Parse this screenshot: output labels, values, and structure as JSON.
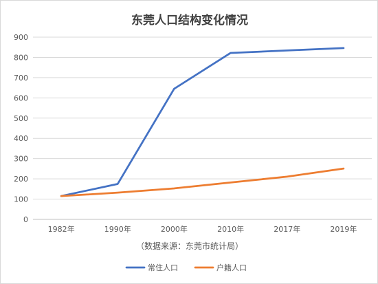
{
  "chart_data": {
    "type": "line",
    "title": "东莞人口结构变化情况",
    "categories": [
      "1982年",
      "1990年",
      "2000年",
      "2010年",
      "2017年",
      "2019年"
    ],
    "xlabel": "（数据来源：东莞市统计局）",
    "ylabel": "",
    "ylim": [
      0,
      900
    ],
    "yticks": [
      0,
      100,
      200,
      300,
      400,
      500,
      600,
      700,
      800,
      900
    ],
    "grid": true,
    "legend_position": "bottom",
    "series": [
      {
        "name": "常住人口",
        "color": "#4472c4",
        "values": [
          115,
          175,
          645,
          822,
          834,
          846
        ]
      },
      {
        "name": "户籍人口",
        "color": "#ed7d31",
        "values": [
          115,
          132,
          153,
          182,
          211,
          251
        ]
      }
    ]
  }
}
